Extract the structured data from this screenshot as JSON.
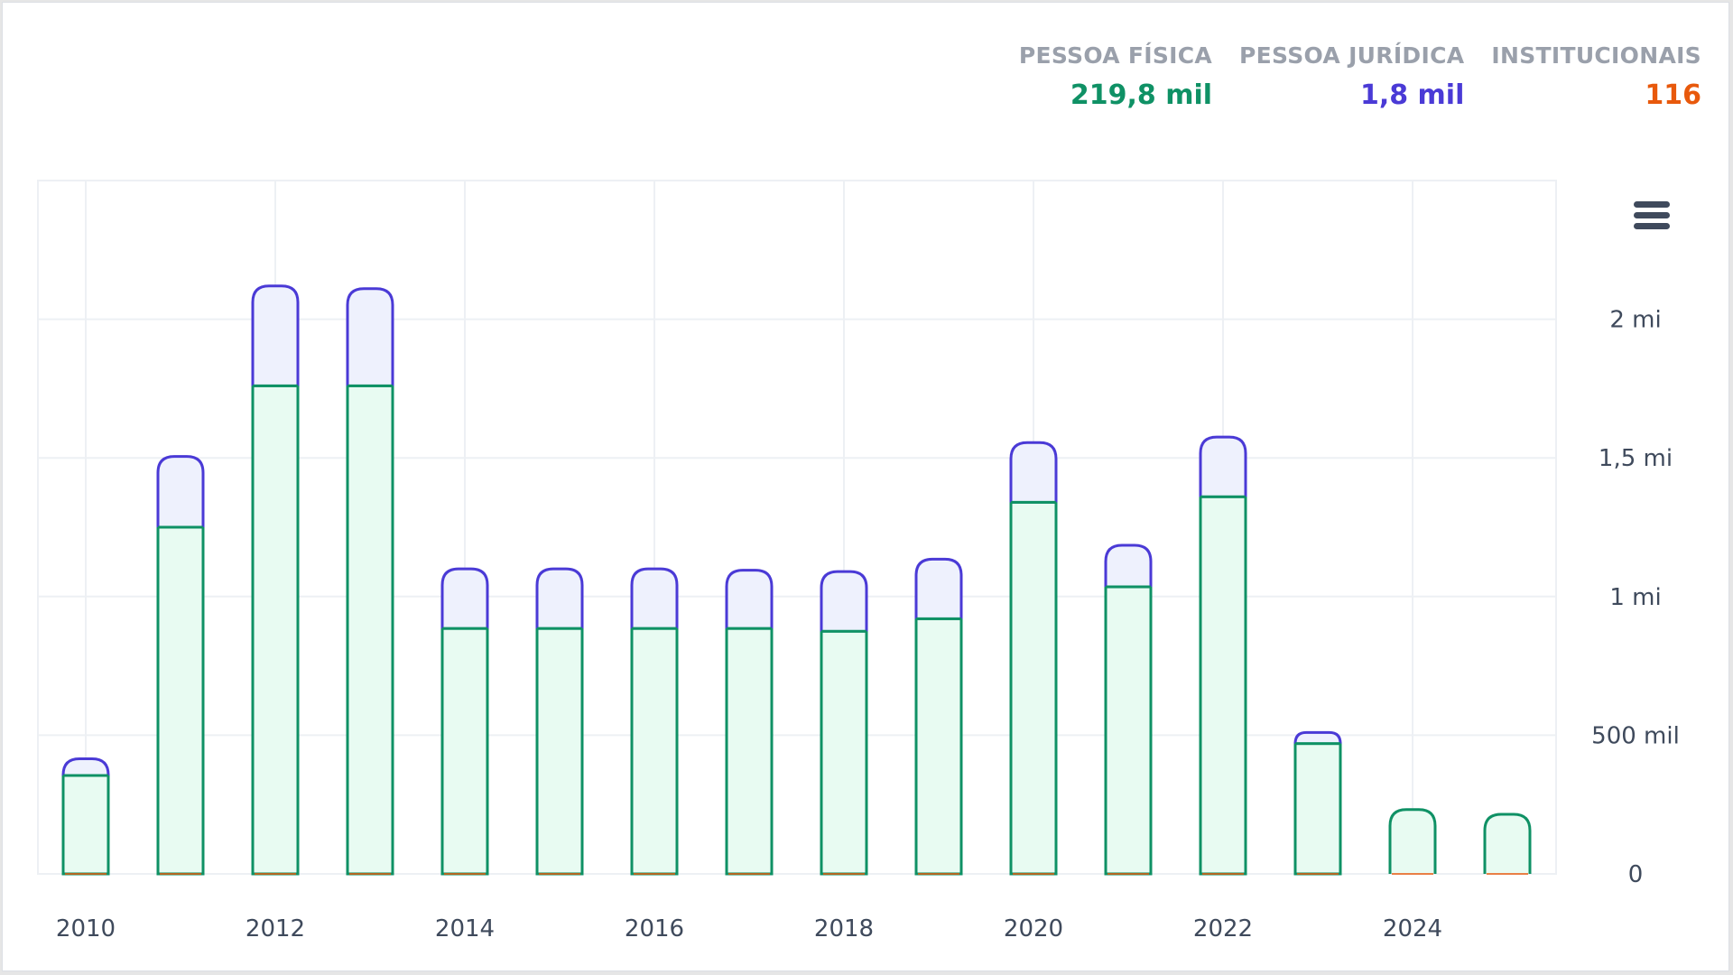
{
  "legend": {
    "items": [
      {
        "label": "PESSOA FÍSICA",
        "value": "219,8 mil",
        "color": "#0f9165"
      },
      {
        "label": "PESSOA JURÍDICA",
        "value": "1,8 mil",
        "color": "#4a3ad6"
      },
      {
        "label": "INSTITUCIONAIS",
        "value": "116",
        "color": "#e8590c"
      }
    ]
  },
  "menu": {
    "icon": "hamburger-menu-icon"
  },
  "colors": {
    "pf_stroke": "#0f9165",
    "pf_fill": "#e8fbf2",
    "pj_stroke": "#4a3ad6",
    "pj_fill": "#eef1fd",
    "inst_stroke": "#e8590c",
    "grid": "#edf0f4",
    "text": "#3f4a5c"
  },
  "chart_data": {
    "type": "bar",
    "stacked": true,
    "x": [
      2010,
      2011,
      2012,
      2013,
      2014,
      2015,
      2016,
      2017,
      2018,
      2019,
      2020,
      2021,
      2022,
      2023,
      2024,
      2025
    ],
    "series": [
      {
        "name": "PESSOA FÍSICA",
        "values": [
          355000,
          1250000,
          1760000,
          1760000,
          885000,
          885000,
          885000,
          885000,
          875000,
          920000,
          1340000,
          1035000,
          1360000,
          470000,
          232000,
          215000
        ]
      },
      {
        "name": "PESSOA JURÍDICA",
        "values": [
          60000,
          255000,
          360000,
          350000,
          215000,
          215000,
          215000,
          210000,
          215000,
          215000,
          215000,
          150000,
          215000,
          40000,
          0,
          0
        ]
      },
      {
        "name": "INSTITUCIONAIS",
        "values": [
          0,
          0,
          0,
          0,
          0,
          0,
          0,
          0,
          0,
          0,
          0,
          0,
          0,
          0,
          0,
          0
        ]
      }
    ],
    "xticks": [
      "2010",
      "2012",
      "2014",
      "2016",
      "2018",
      "2020",
      "2022",
      "2024"
    ],
    "xtick_values": [
      2010,
      2012,
      2014,
      2016,
      2018,
      2020,
      2022,
      2024
    ],
    "yticks": [
      "0",
      "500 mil",
      "1 mi",
      "1,5 mi",
      "2 mi"
    ],
    "ytick_values": [
      0,
      500000,
      1000000,
      1500000,
      2000000
    ],
    "ylim": [
      0,
      2500000
    ],
    "yaxis_position": "right",
    "grid": true
  }
}
